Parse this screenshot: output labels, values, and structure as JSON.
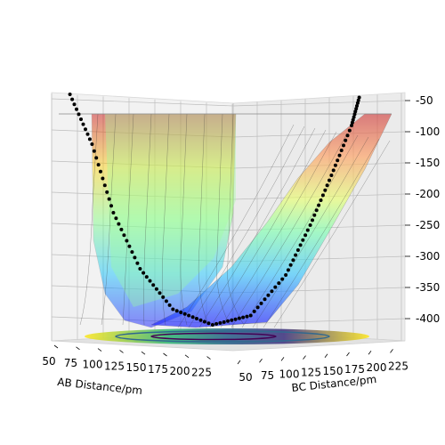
{
  "chart_data": {
    "type": "surface3d",
    "x_axis": {
      "label": "AB Distance/pm",
      "ticks": [
        50,
        75,
        100,
        125,
        150,
        175,
        200,
        225
      ],
      "range": [
        50,
        225
      ]
    },
    "y_axis": {
      "label": "BC Distance/pm",
      "ticks": [
        50,
        75,
        100,
        125,
        150,
        175,
        200,
        225
      ],
      "range": [
        50,
        225
      ]
    },
    "z_axis": {
      "label": "",
      "ticks": [
        -50,
        -100,
        -150,
        -200,
        -250,
        -300,
        -350,
        -400
      ],
      "range": [
        -420,
        -40
      ]
    },
    "colormap": "jet",
    "floor_contour_colormap": "viridis",
    "trajectory_color": "#000000",
    "trajectory_series": [
      {
        "ab": 60,
        "bc": 225,
        "z": -40
      },
      {
        "ab": 68,
        "bc": 210,
        "z": -120
      },
      {
        "ab": 75,
        "bc": 195,
        "z": -230
      },
      {
        "ab": 82,
        "bc": 175,
        "z": -320
      },
      {
        "ab": 90,
        "bc": 150,
        "z": -385
      },
      {
        "ab": 100,
        "bc": 120,
        "z": -410
      },
      {
        "ab": 115,
        "bc": 95,
        "z": -395
      },
      {
        "ab": 140,
        "bc": 80,
        "z": -330
      },
      {
        "ab": 165,
        "bc": 75,
        "z": -250
      },
      {
        "ab": 190,
        "bc": 73,
        "z": -170
      },
      {
        "ab": 215,
        "bc": 72,
        "z": -90
      },
      {
        "ab": 225,
        "bc": 72,
        "z": -45
      }
    ],
    "grid": true
  }
}
